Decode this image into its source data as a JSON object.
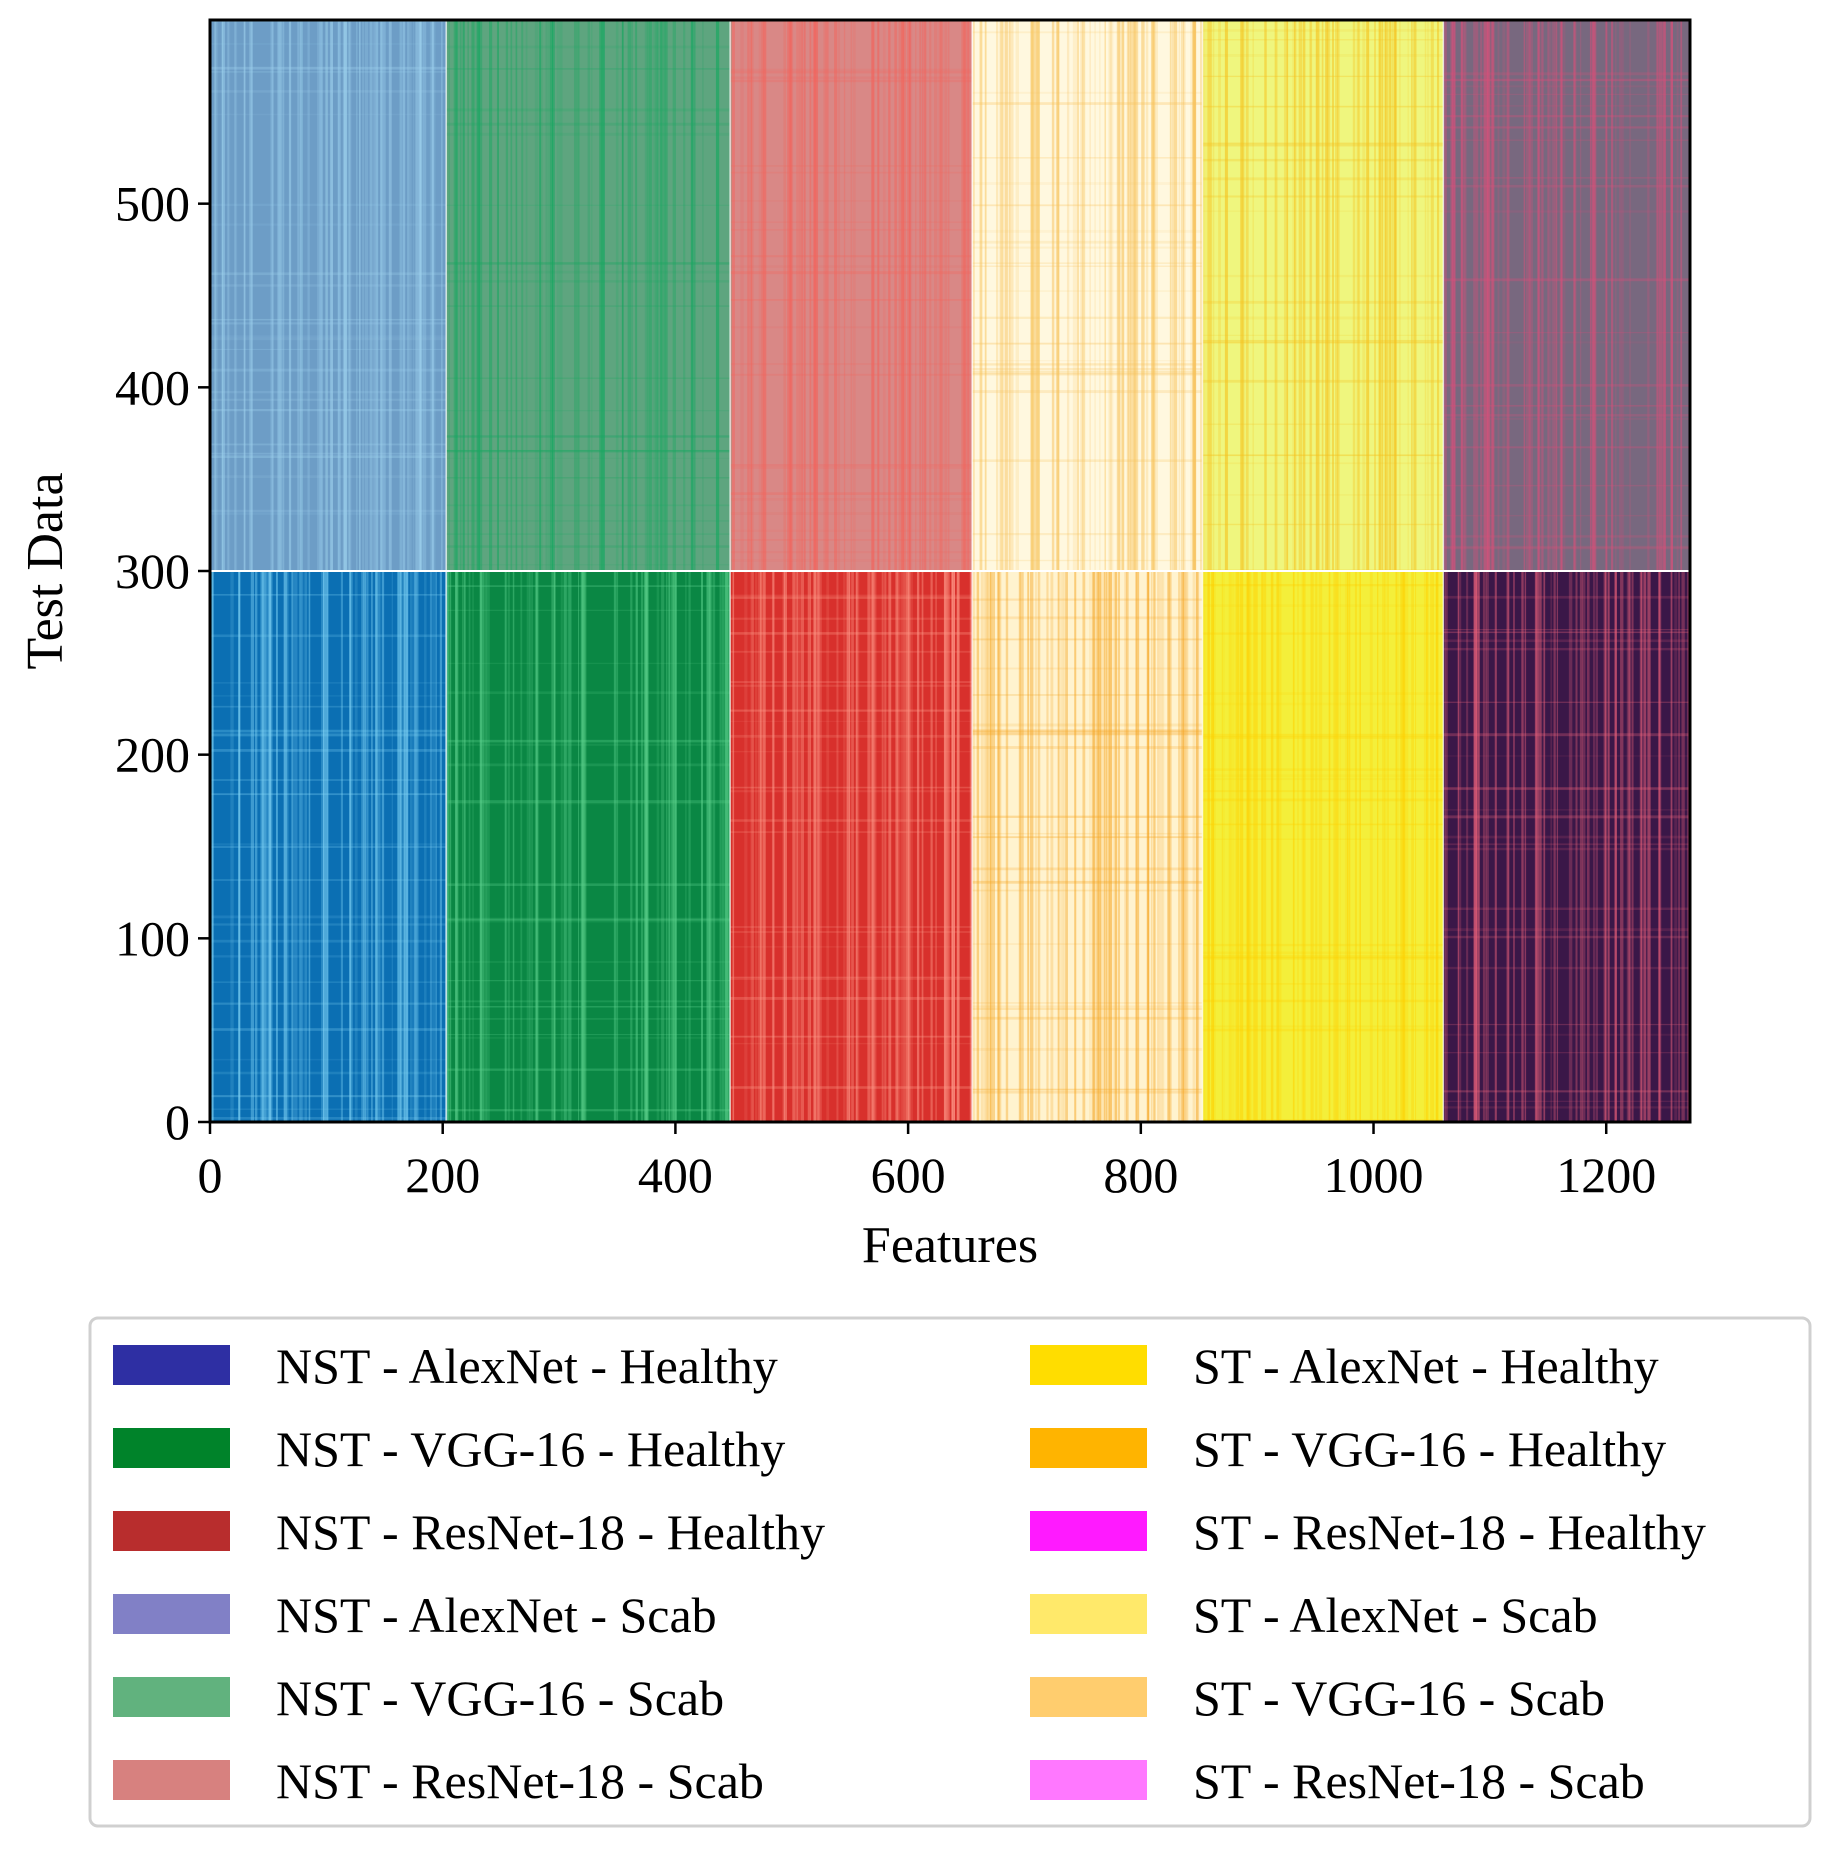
{
  "chart_data": {
    "type": "heatmap",
    "title": "",
    "xlabel": "Features",
    "ylabel": "Test Data",
    "xlim": [
      0,
      1272
    ],
    "ylim": [
      0,
      600
    ],
    "xticks": [
      0,
      200,
      400,
      600,
      800,
      1000,
      1200
    ],
    "yticks": [
      0,
      100,
      200,
      300,
      400,
      500
    ],
    "grid": false,
    "legend_placement": "below",
    "blocks": [
      {
        "name": "NST - AlexNet - Healthy",
        "x": [
          0,
          203
        ],
        "y": [
          0,
          300
        ],
        "color": "#0b6fb3",
        "accent": "#7fd3f5"
      },
      {
        "name": "NST - VGG-16 - Healthy",
        "x": [
          203,
          447
        ],
        "y": [
          0,
          300
        ],
        "color": "#0a8744",
        "accent": "#5fd38f"
      },
      {
        "name": "NST - ResNet-18 - Healthy",
        "x": [
          447,
          655
        ],
        "y": [
          0,
          300
        ],
        "color": "#d8302c",
        "accent": "#ff9a8a"
      },
      {
        "name": "ST - AlexNet - Healthy",
        "x": [
          655,
          853
        ],
        "y": [
          0,
          300
        ],
        "color": "#fff3cf",
        "accent": "#f5a623"
      },
      {
        "name": "ST - VGG-16 - Healthy",
        "x": [
          853,
          1060
        ],
        "y": [
          0,
          300
        ],
        "color": "#f4ef3a",
        "accent": "#ffd000"
      },
      {
        "name": "ST - ResNet-18 - Healthy",
        "x": [
          1060,
          1272
        ],
        "y": [
          0,
          300
        ],
        "color": "#3a1748",
        "accent": "#e8607a"
      },
      {
        "name": "NST - AlexNet - Scab",
        "x": [
          0,
          203
        ],
        "y": [
          300,
          600
        ],
        "color": "#6d9dc6",
        "accent": "#9ed2ee"
      },
      {
        "name": "NST - VGG-16 - Scab",
        "x": [
          203,
          447
        ],
        "y": [
          300,
          600
        ],
        "color": "#5ea57f",
        "accent": "#1aa862"
      },
      {
        "name": "NST - ResNet-18 - Scab",
        "x": [
          447,
          655
        ],
        "y": [
          300,
          600
        ],
        "color": "#d98886",
        "accent": "#f2665e"
      },
      {
        "name": "ST - AlexNet - Scab",
        "x": [
          655,
          853
        ],
        "y": [
          300,
          600
        ],
        "color": "#fff8df",
        "accent": "#f7c25a"
      },
      {
        "name": "ST - VGG-16 - Scab",
        "x": [
          853,
          1060
        ],
        "y": [
          300,
          600
        ],
        "color": "#eff67e",
        "accent": "#f6c21e"
      },
      {
        "name": "ST - ResNet-18 - Scab",
        "x": [
          1060,
          1272
        ],
        "y": [
          300,
          600
        ],
        "color": "#78687f",
        "accent": "#d8507a"
      }
    ],
    "legend": [
      {
        "label": "NST - AlexNet - Healthy",
        "color": "#2e2fa3"
      },
      {
        "label": "NST - VGG-16 - Healthy",
        "color": "#00832a"
      },
      {
        "label": "NST - ResNet-18 - Healthy",
        "color": "#b82d2d"
      },
      {
        "label": "NST - AlexNet - Scab",
        "color": "#8180c6"
      },
      {
        "label": "NST - VGG-16 - Scab",
        "color": "#61b27e"
      },
      {
        "label": "NST - ResNet-18 - Scab",
        "color": "#d7817f"
      },
      {
        "label": "ST - AlexNet - Healthy",
        "color": "#ffdd00"
      },
      {
        "label": "ST - VGG-16 - Healthy",
        "color": "#ffb400"
      },
      {
        "label": "ST - ResNet-18 - Healthy",
        "color": "#ff1aff"
      },
      {
        "label": "ST - AlexNet - Scab",
        "color": "#ffe96a"
      },
      {
        "label": "ST - VGG-16 - Scab",
        "color": "#ffcd6e"
      },
      {
        "label": "ST - ResNet-18 - Scab",
        "color": "#ff78ff"
      }
    ]
  }
}
